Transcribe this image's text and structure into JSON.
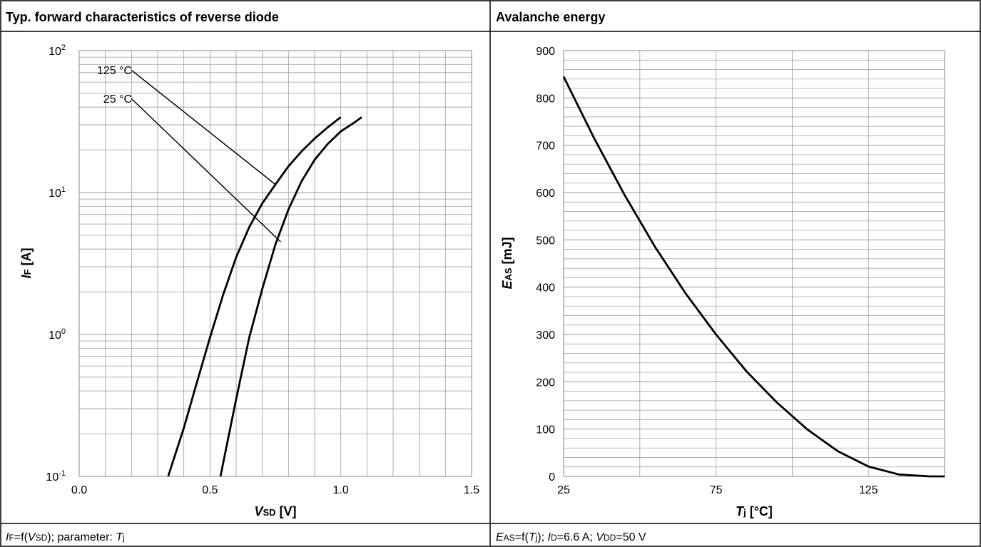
{
  "panels": [
    {
      "title": "Typ. forward characteristics of reverse diode",
      "footer": {
        "sym": "I",
        "sub": "F",
        "mid": "=f(",
        "sym2": "V",
        "sub2": "SD",
        "rest": "); parameter: ",
        "sym3": "T",
        "sub3": "j"
      }
    },
    {
      "title": "Avalanche energy",
      "footer": {
        "sym": "E",
        "sub": "AS",
        "mid": "=f(",
        "sym2": "T",
        "sub2": "j",
        "rest": "); ",
        "sym3": "I",
        "sub3": "D",
        "rest2": "=6.6 A; ",
        "sym4": "V",
        "sub4": "DD",
        "rest3": "=50 V"
      }
    }
  ],
  "chart_data": [
    {
      "type": "line",
      "title": "Typ. forward characteristics of reverse diode",
      "xlabel": {
        "sym": "V",
        "sub": "SD",
        "unit": " [V]"
      },
      "ylabel": {
        "sym": "I",
        "sub": "F",
        "unit": " [A]"
      },
      "xlim": [
        0,
        1.5
      ],
      "ylim": [
        0.1,
        100
      ],
      "yscale": "log",
      "grid": true,
      "xticks": [
        "0.0",
        "0.5",
        "1.0",
        "1.5"
      ],
      "yticks": [
        {
          "value": 0.1,
          "base": "10",
          "exp": "-1"
        },
        {
          "value": 1,
          "base": "10",
          "exp": "0"
        },
        {
          "value": 10,
          "base": "10",
          "exp": "1"
        },
        {
          "value": 100,
          "base": "10",
          "exp": "2"
        }
      ],
      "series": [
        {
          "name": "125 °C",
          "x": [
            0.34,
            0.4,
            0.45,
            0.5,
            0.55,
            0.6,
            0.65,
            0.7,
            0.75,
            0.8,
            0.85,
            0.9,
            0.95,
            1.0
          ],
          "y": [
            0.1,
            0.22,
            0.46,
            0.95,
            1.9,
            3.5,
            5.7,
            8.4,
            11.4,
            15.3,
            19.5,
            24.0,
            28.8,
            34.0
          ]
        },
        {
          "name": "25 °C",
          "x": [
            0.54,
            0.6,
            0.65,
            0.7,
            0.75,
            0.8,
            0.85,
            0.9,
            0.95,
            1.0,
            1.05,
            1.08
          ],
          "y": [
            0.1,
            0.35,
            0.95,
            2.1,
            4.3,
            7.6,
            12.0,
            17.0,
            22.0,
            27.0,
            31.0,
            34.0
          ]
        }
      ],
      "annotations": [
        {
          "text": "125 °C",
          "label_x": 0.21,
          "label_y": 73,
          "point_x": 0.75,
          "point_y": 11.4
        },
        {
          "text": "25 °C",
          "label_x": 0.21,
          "label_y": 46,
          "point_x": 0.77,
          "point_y": 4.5
        }
      ]
    },
    {
      "type": "line",
      "title": "Avalanche energy",
      "xlabel": {
        "sym": "T",
        "sub": "j",
        "unit": " [°C]"
      },
      "ylabel": {
        "sym": "E",
        "sub": "AS",
        "unit": " [mJ]"
      },
      "xlim": [
        25,
        150
      ],
      "ylim": [
        0,
        900
      ],
      "grid": true,
      "xticks": [
        "25",
        "75",
        "125"
      ],
      "yticks": [
        "0",
        "100",
        "200",
        "300",
        "400",
        "500",
        "600",
        "700",
        "800",
        "900"
      ],
      "series": [
        {
          "name": "",
          "x": [
            25,
            35,
            45,
            55,
            65,
            75,
            85,
            95,
            105,
            115,
            125,
            135,
            145,
            150
          ],
          "y": [
            845,
            715,
            595,
            485,
            387,
            300,
            222,
            156,
            99,
            53,
            21,
            4,
            0,
            0
          ]
        }
      ]
    }
  ]
}
